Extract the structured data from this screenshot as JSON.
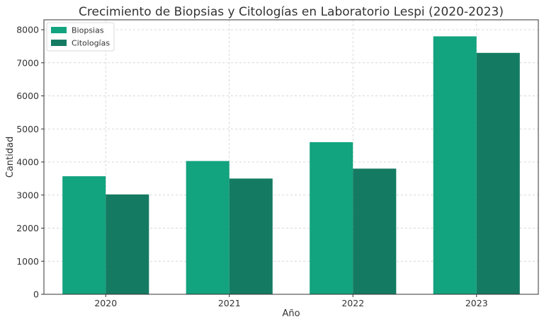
{
  "chart_data": {
    "type": "bar",
    "title": "Crecimiento de Biopsias y Citologías en Laboratorio Lespi (2020-2023)",
    "xlabel": "Año",
    "ylabel": "Cantidad",
    "categories": [
      "2020",
      "2021",
      "2022",
      "2023"
    ],
    "series": [
      {
        "name": "Biopsias",
        "values": [
          3570,
          4030,
          4600,
          7800
        ],
        "color": "#12a37f"
      },
      {
        "name": "Citologías",
        "values": [
          3020,
          3500,
          3800,
          7300
        ],
        "color": "#147b62"
      }
    ],
    "ylim": [
      0,
      8300
    ],
    "yticks": [
      0,
      1000,
      2000,
      3000,
      4000,
      5000,
      6000,
      7000,
      8000
    ],
    "grid": true,
    "legend_position": "top-left"
  }
}
